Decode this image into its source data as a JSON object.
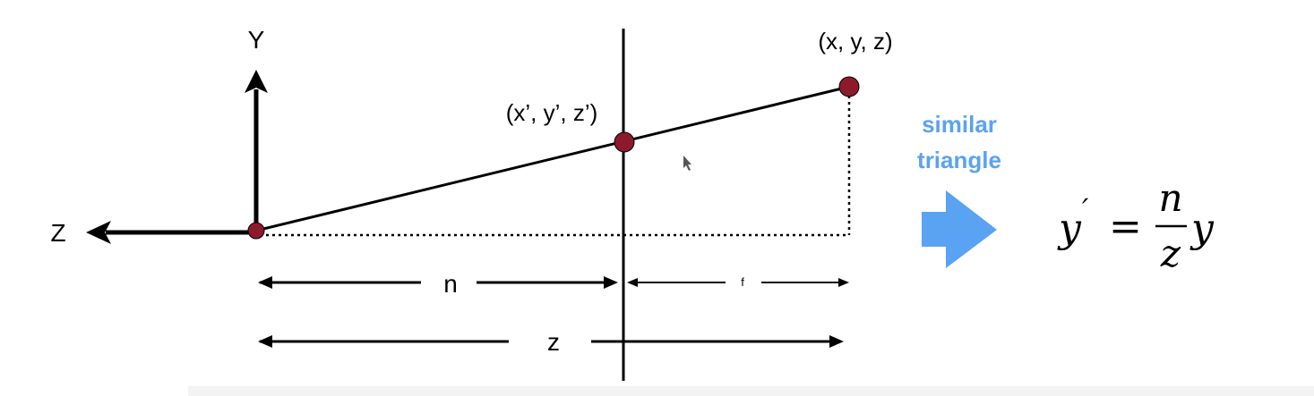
{
  "labels": {
    "y_axis": "Y",
    "z_axis": "Z",
    "far_point": "(x, y, z)",
    "projected_point": "(x’, y’, z’)",
    "n_distance": "n",
    "f_distance": "f",
    "z_distance": "z"
  },
  "annotation": {
    "line1": "similar",
    "line2": "triangle"
  },
  "formula": {
    "lhs": "y",
    "prime": "′",
    "equals": "=",
    "numerator": "n",
    "denominator": "z",
    "rhs": "y"
  },
  "colors": {
    "line": "#000000",
    "point": "#8c1a2c",
    "accent": "#5aa2f2"
  }
}
